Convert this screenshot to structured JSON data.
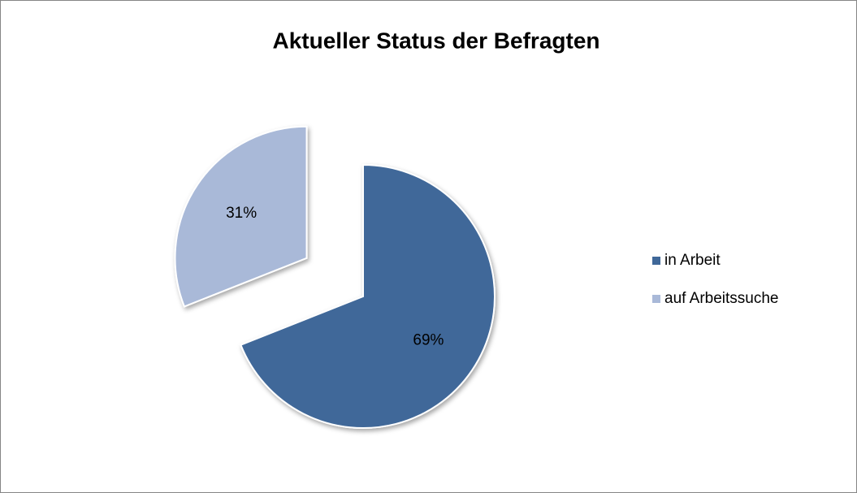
{
  "chart_data": {
    "type": "pie",
    "title": "Aktueller Status der Befragten",
    "categories": [
      "in Arbeit",
      "auf Arbeitssuche"
    ],
    "values": [
      69,
      31
    ],
    "value_labels": [
      "69%",
      "31%"
    ],
    "colors": [
      "#3f6899",
      "#a9b9d8"
    ],
    "explode": [
      false,
      true
    ],
    "legend": "right"
  }
}
